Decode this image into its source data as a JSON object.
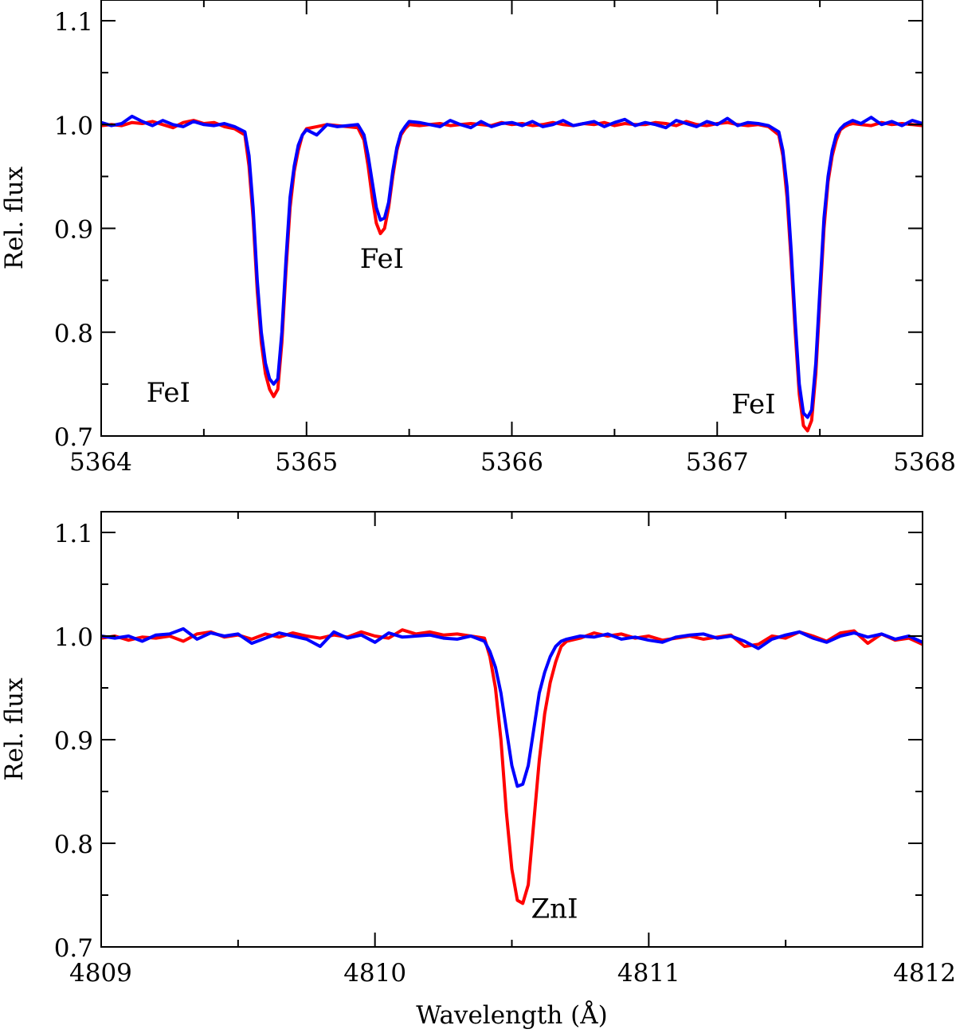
{
  "chart_data": [
    {
      "type": "line",
      "xlabel": "",
      "ylabel": "Rel. flux",
      "xlim": [
        5364,
        5368
      ],
      "ylim": [
        0.7,
        1.12
      ],
      "xticks": [
        5364,
        5365,
        5366,
        5367,
        5368
      ],
      "xtick_labels": [
        "5364",
        "5365",
        "5366",
        "5367",
        "5368"
      ],
      "xminor_step": 0.5,
      "yticks": [
        0.7,
        0.8,
        0.9,
        1.0,
        1.1
      ],
      "ytick_labels": [
        "0.7",
        "0.8",
        "0.9",
        "1.0",
        "1.1"
      ],
      "yminor_step": 0.05,
      "grid": false,
      "legend": "none",
      "annotations": [
        {
          "text": "FeI",
          "x": 5364.22,
          "y": 0.733
        },
        {
          "text": "FeI",
          "x": 5365.26,
          "y": 0.862
        },
        {
          "text": "FeI",
          "x": 5367.07,
          "y": 0.722
        }
      ],
      "series": [
        {
          "color": "#ff0000",
          "x": [
            5364.0,
            5364.05,
            5364.1,
            5364.15,
            5364.2,
            5364.25,
            5364.3,
            5364.35,
            5364.4,
            5364.45,
            5364.5,
            5364.55,
            5364.6,
            5364.65,
            5364.7,
            5364.72,
            5364.74,
            5364.76,
            5364.78,
            5364.8,
            5364.82,
            5364.84,
            5364.86,
            5364.88,
            5364.9,
            5364.92,
            5364.94,
            5364.96,
            5364.98,
            5365.0,
            5365.05,
            5365.1,
            5365.15,
            5365.2,
            5365.25,
            5365.28,
            5365.3,
            5365.32,
            5365.34,
            5365.36,
            5365.38,
            5365.4,
            5365.42,
            5365.44,
            5365.46,
            5365.48,
            5365.5,
            5365.55,
            5365.6,
            5365.65,
            5365.7,
            5365.75,
            5365.8,
            5365.85,
            5365.9,
            5365.95,
            5366.0,
            5366.05,
            5366.1,
            5366.15,
            5366.2,
            5366.25,
            5366.3,
            5366.35,
            5366.4,
            5366.45,
            5366.5,
            5366.55,
            5366.6,
            5366.65,
            5366.7,
            5366.75,
            5366.8,
            5366.85,
            5366.9,
            5366.95,
            5367.0,
            5367.05,
            5367.1,
            5367.15,
            5367.2,
            5367.25,
            5367.3,
            5367.32,
            5367.34,
            5367.36,
            5367.38,
            5367.4,
            5367.42,
            5367.44,
            5367.46,
            5367.48,
            5367.5,
            5367.52,
            5367.54,
            5367.56,
            5367.58,
            5367.6,
            5367.62,
            5367.64,
            5367.66,
            5367.7,
            5367.75,
            5367.8,
            5367.85,
            5367.9,
            5367.95,
            5368.0
          ],
          "y": [
            0.999,
            1.0,
            0.999,
            1.002,
            1.001,
            1.003,
            1.0,
            0.997,
            1.002,
            1.004,
            1.001,
            1.002,
            0.998,
            0.996,
            0.99,
            0.96,
            0.91,
            0.84,
            0.79,
            0.76,
            0.745,
            0.738,
            0.745,
            0.79,
            0.86,
            0.92,
            0.955,
            0.975,
            0.99,
            0.996,
            0.998,
            1.0,
            0.999,
            0.998,
            0.997,
            0.985,
            0.96,
            0.93,
            0.905,
            0.895,
            0.9,
            0.92,
            0.95,
            0.975,
            0.99,
            0.996,
            1.0,
            0.999,
            1.0,
            1.001,
            0.999,
            1.0,
            1.001,
            1.0,
            0.999,
            1.002,
            1.0,
            1.001,
            0.999,
            1.0,
            1.002,
            1.0,
            0.999,
            1.001,
            1.0,
            1.002,
            0.999,
            1.001,
            1.0,
            1.0,
            1.002,
            1.001,
            0.999,
            1.003,
            1.0,
            0.999,
            1.001,
            1.002,
            1.0,
            0.999,
            1.0,
            0.998,
            0.99,
            0.97,
            0.93,
            0.87,
            0.8,
            0.74,
            0.71,
            0.705,
            0.715,
            0.76,
            0.83,
            0.9,
            0.945,
            0.97,
            0.985,
            0.995,
            0.998,
            1.0,
            1.001,
            1.0,
            0.999,
            1.002,
            1.0,
            1.001,
            1.0,
            0.999
          ]
        },
        {
          "color": "#0000ff",
          "x": [
            5364.0,
            5364.05,
            5364.1,
            5364.15,
            5364.2,
            5364.25,
            5364.3,
            5364.35,
            5364.4,
            5364.45,
            5364.5,
            5364.55,
            5364.6,
            5364.65,
            5364.7,
            5364.72,
            5364.74,
            5364.76,
            5364.78,
            5364.8,
            5364.82,
            5364.84,
            5364.86,
            5364.88,
            5364.9,
            5364.92,
            5364.94,
            5364.96,
            5364.98,
            5365.0,
            5365.05,
            5365.1,
            5365.15,
            5365.2,
            5365.25,
            5365.28,
            5365.3,
            5365.32,
            5365.34,
            5365.36,
            5365.38,
            5365.4,
            5365.42,
            5365.44,
            5365.46,
            5365.48,
            5365.5,
            5365.55,
            5365.6,
            5365.65,
            5365.7,
            5365.75,
            5365.8,
            5365.85,
            5365.9,
            5365.95,
            5366.0,
            5366.05,
            5366.1,
            5366.15,
            5366.2,
            5366.25,
            5366.3,
            5366.35,
            5366.4,
            5366.45,
            5366.5,
            5366.55,
            5366.6,
            5366.65,
            5366.7,
            5366.75,
            5366.8,
            5366.85,
            5366.9,
            5366.95,
            5367.0,
            5367.05,
            5367.1,
            5367.15,
            5367.2,
            5367.25,
            5367.3,
            5367.32,
            5367.34,
            5367.36,
            5367.38,
            5367.4,
            5367.42,
            5367.44,
            5367.46,
            5367.48,
            5367.5,
            5367.52,
            5367.54,
            5367.56,
            5367.58,
            5367.6,
            5367.62,
            5367.64,
            5367.66,
            5367.7,
            5367.75,
            5367.8,
            5367.85,
            5367.9,
            5367.95,
            5368.0
          ],
          "y": [
            1.002,
            0.999,
            1.001,
            1.008,
            1.003,
            0.999,
            1.004,
            1.0,
            0.998,
            1.003,
            1.0,
            0.999,
            1.001,
            0.998,
            0.993,
            0.97,
            0.92,
            0.85,
            0.8,
            0.77,
            0.755,
            0.75,
            0.755,
            0.8,
            0.87,
            0.93,
            0.96,
            0.98,
            0.99,
            0.995,
            0.99,
            1.0,
            0.998,
            0.999,
            1.0,
            0.99,
            0.97,
            0.945,
            0.92,
            0.908,
            0.91,
            0.925,
            0.955,
            0.978,
            0.992,
            0.998,
            1.003,
            1.002,
            1.0,
            0.998,
            1.004,
            1.0,
            0.997,
            1.003,
            0.998,
            1.001,
            1.002,
            0.999,
            1.003,
            0.998,
            1.0,
            1.004,
            0.999,
            1.001,
            1.003,
            0.998,
            1.002,
            1.005,
            0.999,
            1.002,
            1.0,
            0.997,
            1.004,
            1.001,
            0.998,
            1.003,
            1.0,
            1.006,
            0.999,
            1.002,
            1.001,
            0.999,
            0.993,
            0.975,
            0.94,
            0.88,
            0.81,
            0.75,
            0.722,
            0.718,
            0.725,
            0.77,
            0.84,
            0.91,
            0.95,
            0.975,
            0.99,
            0.996,
            1.0,
            1.002,
            1.004,
            1.001,
            1.007,
            1.0,
            1.003,
            0.999,
            1.004,
            1.001
          ]
        }
      ]
    },
    {
      "type": "line",
      "xlabel": "Wavelength (Å)",
      "ylabel": "Rel. flux",
      "xlim": [
        4809,
        4812
      ],
      "ylim": [
        0.7,
        1.12
      ],
      "xticks": [
        4809,
        4810,
        4811,
        4812
      ],
      "xtick_labels": [
        "4809",
        "4810",
        "4811",
        "4812"
      ],
      "xminor_step": 0.5,
      "yticks": [
        0.7,
        0.8,
        0.9,
        1.0,
        1.1
      ],
      "ytick_labels": [
        "0.7",
        "0.8",
        "0.9",
        "1.0",
        "1.1"
      ],
      "yminor_step": 0.05,
      "grid": false,
      "legend": "none",
      "annotations": [
        {
          "text": "ZnI",
          "x": 4810.57,
          "y": 0.728
        }
      ],
      "series": [
        {
          "color": "#ff0000",
          "x": [
            4809.0,
            4809.05,
            4809.1,
            4809.15,
            4809.2,
            4809.25,
            4809.3,
            4809.35,
            4809.4,
            4809.45,
            4809.5,
            4809.55,
            4809.6,
            4809.65,
            4809.7,
            4809.75,
            4809.8,
            4809.85,
            4809.9,
            4809.95,
            4810.0,
            4810.05,
            4810.1,
            4810.15,
            4810.2,
            4810.25,
            4810.3,
            4810.35,
            4810.4,
            4810.42,
            4810.44,
            4810.46,
            4810.48,
            4810.5,
            4810.52,
            4810.54,
            4810.56,
            4810.58,
            4810.6,
            4810.62,
            4810.64,
            4810.66,
            4810.68,
            4810.7,
            4810.75,
            4810.8,
            4810.85,
            4810.9,
            4810.95,
            4811.0,
            4811.05,
            4811.1,
            4811.15,
            4811.2,
            4811.25,
            4811.3,
            4811.35,
            4811.4,
            4811.45,
            4811.5,
            4811.55,
            4811.6,
            4811.65,
            4811.7,
            4811.75,
            4811.8,
            4811.85,
            4811.9,
            4811.95,
            4812.0
          ],
          "y": [
            0.998,
            1.0,
            0.996,
            0.999,
            0.998,
            1.0,
            0.995,
            1.002,
            1.004,
            0.999,
            1.001,
            0.997,
            1.002,
            0.999,
            1.003,
            1.0,
            0.998,
            1.001,
            0.999,
            1.004,
            1.0,
            0.998,
            1.006,
            1.002,
            1.004,
            1.001,
            1.002,
            1.0,
            0.998,
            0.98,
            0.95,
            0.9,
            0.83,
            0.775,
            0.745,
            0.742,
            0.76,
            0.82,
            0.88,
            0.925,
            0.955,
            0.975,
            0.99,
            0.995,
            0.998,
            1.003,
            1.0,
            1.002,
            0.998,
            1.0,
            0.996,
            0.998,
            1.0,
            0.997,
            0.999,
            1.001,
            0.99,
            0.992,
            1.0,
            0.998,
            1.004,
            1.0,
            0.995,
            1.003,
            1.005,
            0.993,
            1.002,
            0.996,
            0.998,
            0.992
          ]
        },
        {
          "color": "#0000ff",
          "x": [
            4809.0,
            4809.05,
            4809.1,
            4809.15,
            4809.2,
            4809.25,
            4809.3,
            4809.35,
            4809.4,
            4809.45,
            4809.5,
            4809.55,
            4809.6,
            4809.65,
            4809.7,
            4809.75,
            4809.8,
            4809.85,
            4809.9,
            4809.95,
            4810.0,
            4810.05,
            4810.1,
            4810.15,
            4810.2,
            4810.25,
            4810.3,
            4810.35,
            4810.4,
            4810.42,
            4810.44,
            4810.46,
            4810.48,
            4810.5,
            4810.52,
            4810.54,
            4810.56,
            4810.58,
            4810.6,
            4810.62,
            4810.64,
            4810.66,
            4810.68,
            4810.7,
            4810.75,
            4810.8,
            4810.85,
            4810.9,
            4810.95,
            4811.0,
            4811.05,
            4811.1,
            4811.15,
            4811.2,
            4811.25,
            4811.3,
            4811.35,
            4811.4,
            4811.45,
            4811.5,
            4811.55,
            4811.6,
            4811.65,
            4811.7,
            4811.75,
            4811.8,
            4811.85,
            4811.9,
            4811.95,
            4812.0
          ],
          "y": [
            1.0,
            0.998,
            1.0,
            0.995,
            1.001,
            1.002,
            1.007,
            0.997,
            1.003,
            1.0,
            1.002,
            0.993,
            0.998,
            1.003,
            1.0,
            0.997,
            0.99,
            1.004,
            0.998,
            1.001,
            0.994,
            1.003,
            0.999,
            1.0,
            1.001,
            0.998,
            0.997,
            1.0,
            0.995,
            0.985,
            0.97,
            0.945,
            0.91,
            0.875,
            0.855,
            0.857,
            0.875,
            0.91,
            0.945,
            0.965,
            0.98,
            0.99,
            0.995,
            0.997,
            1.0,
            0.999,
            1.002,
            0.997,
            0.999,
            0.996,
            0.994,
            0.999,
            1.001,
            1.002,
            0.998,
            1.0,
            0.995,
            0.988,
            0.997,
            1.001,
            1.004,
            0.998,
            0.994,
            1.0,
            1.003,
            0.999,
            1.002,
            0.997,
            1.0,
            0.994
          ]
        }
      ]
    }
  ]
}
